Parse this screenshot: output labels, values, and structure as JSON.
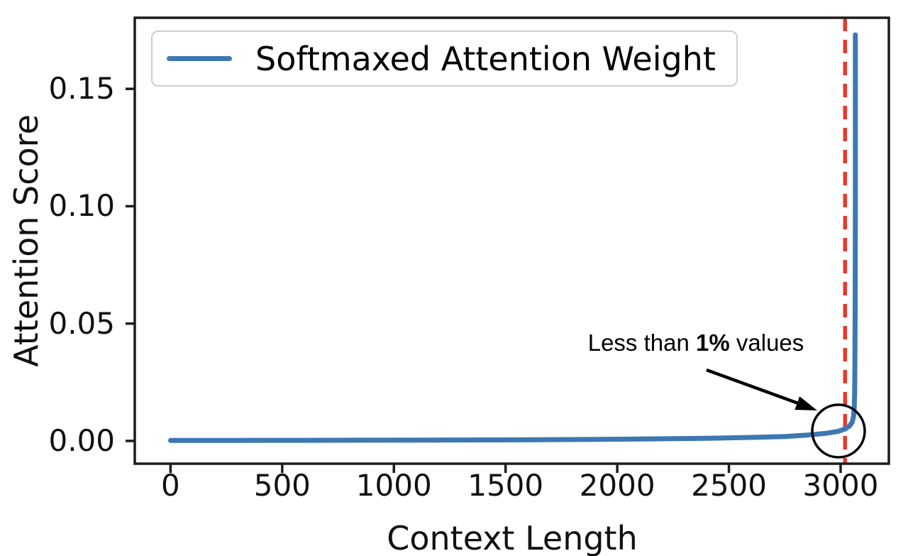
{
  "chart_data": {
    "type": "line",
    "title": "",
    "xlabel": "Context Length",
    "ylabel": "Attention Score",
    "xlim": [
      -160,
      3216
    ],
    "ylim": [
      -0.0097,
      0.1803
    ],
    "x_ticks": [
      0,
      500,
      1000,
      1500,
      2000,
      2500,
      3000
    ],
    "x_tick_labels": [
      "0",
      "500",
      "1000",
      "1500",
      "2000",
      "2500",
      "3000"
    ],
    "y_ticks": [
      0,
      0.05,
      0.1,
      0.15
    ],
    "y_tick_labels": [
      "0.00",
      "0.05",
      "0.10",
      "0.15"
    ],
    "grid": false,
    "legend_position": "upper left",
    "series": [
      {
        "name": "Softmaxed Attention Weight",
        "color": "#3d78b2",
        "points": [
          [
            0,
            0.0002
          ],
          [
            300,
            0.00022
          ],
          [
            600,
            0.00026
          ],
          [
            900,
            0.0003
          ],
          [
            1200,
            0.00036
          ],
          [
            1500,
            0.00045
          ],
          [
            1800,
            0.0006
          ],
          [
            2100,
            0.0008
          ],
          [
            2400,
            0.0011
          ],
          [
            2600,
            0.0015
          ],
          [
            2750,
            0.0019
          ],
          [
            2850,
            0.0025
          ],
          [
            2930,
            0.0032
          ],
          [
            2990,
            0.0041
          ],
          [
            3020,
            0.0051
          ],
          [
            3040,
            0.0064
          ],
          [
            3052,
            0.008
          ],
          [
            3058,
            0.0105
          ],
          [
            3061,
            0.014
          ],
          [
            3063,
            0.02
          ],
          [
            3064,
            0.03
          ],
          [
            3065,
            0.055
          ],
          [
            3066,
            0.1
          ],
          [
            3066,
            0.173
          ]
        ]
      }
    ],
    "vline": {
      "x": 3020,
      "color": "#e8392b",
      "style": "dashed"
    },
    "annotation": {
      "full_text": "Less than 1% values",
      "prefix": "Less than ",
      "bold": "1%",
      "suffix": " values",
      "points_to_x": 2990,
      "points_to_y": 0.004
    },
    "axis_color": "#1c1c1c"
  }
}
